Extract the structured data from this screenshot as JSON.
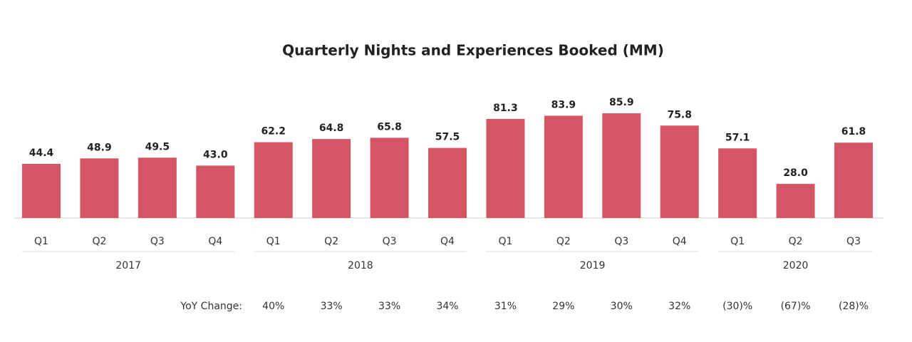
{
  "chart_data": {
    "type": "bar",
    "title": "Quarterly Nights and Experiences Booked (MM)",
    "groups": [
      {
        "name": "2017",
        "categories": [
          "Q1",
          "Q2",
          "Q3",
          "Q4"
        ]
      },
      {
        "name": "2018",
        "categories": [
          "Q1",
          "Q2",
          "Q3",
          "Q4"
        ]
      },
      {
        "name": "2019",
        "categories": [
          "Q1",
          "Q2",
          "Q3",
          "Q4"
        ]
      },
      {
        "name": "2020",
        "categories": [
          "Q1",
          "Q2",
          "Q3"
        ]
      }
    ],
    "values": [
      44.4,
      48.9,
      49.5,
      43,
      62.2,
      64.8,
      65.8,
      57.5,
      81.3,
      83.9,
      85.9,
      75.8,
      57.1,
      28,
      61.8
    ],
    "value_labels": [
      "44.4",
      "48.9",
      "49.5",
      "43.0",
      "62.2",
      "64.8",
      "65.8",
      "57.5",
      "81.3",
      "83.9",
      "85.9",
      "75.8",
      "57.1",
      "28.0",
      "61.8"
    ],
    "color": "#d45563",
    "yoy_label": "YoY Change:",
    "yoy": [
      null,
      null,
      null,
      null,
      "40%",
      "33%",
      "33%",
      "34%",
      "31%",
      "29%",
      "30%",
      "32%",
      "(30)%",
      "(67)%",
      "(28)%"
    ]
  }
}
